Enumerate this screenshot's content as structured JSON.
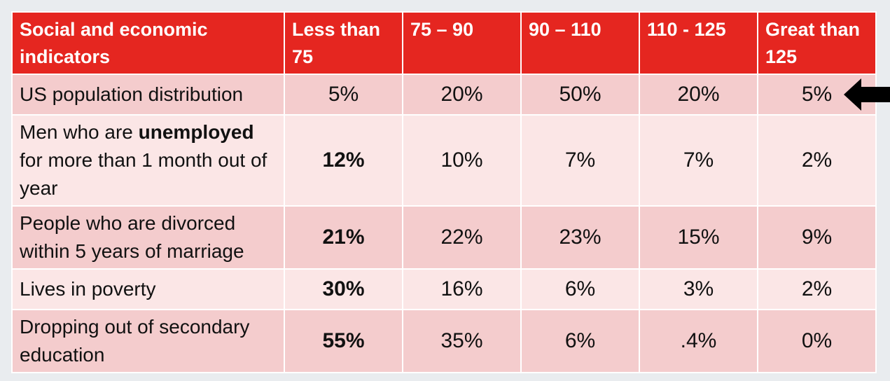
{
  "chart_data": {
    "type": "table",
    "columns": [
      "Social and economic indicators",
      "Less than 75",
      "75 – 90",
      "90 – 110",
      "110 - 125",
      "Great than 125"
    ],
    "rows": [
      {
        "label_parts": [
          "US population distribution"
        ],
        "values": [
          "5%",
          "20%",
          "50%",
          "20%",
          "5%"
        ]
      },
      {
        "label_parts": [
          "Men who are ",
          "unemployed",
          " for more than 1 month out of year"
        ],
        "values": [
          "12%",
          "10%",
          "7%",
          "7%",
          "2%"
        ]
      },
      {
        "label_parts": [
          "People who are divorced within 5 years of marriage"
        ],
        "values": [
          "21%",
          "22%",
          "23%",
          "15%",
          "9%"
        ]
      },
      {
        "label_parts": [
          "Lives in poverty"
        ],
        "values": [
          "30%",
          "16%",
          "6%",
          "3%",
          "2%"
        ]
      },
      {
        "label_parts": [
          "Dropping out of secondary education"
        ],
        "values": [
          "55%",
          "35%",
          "6%",
          ".4%",
          "0%"
        ]
      }
    ],
    "bold_first_value_rows": [
      1,
      2,
      3,
      4
    ],
    "highlighted_row": 0
  },
  "colors": {
    "header_bg": "#e52620",
    "row_odd_bg": "#f4cccd",
    "row_even_bg": "#fbe6e6",
    "arrow": "#000000"
  },
  "icons": {
    "row_pointer": "left-arrow-icon"
  }
}
